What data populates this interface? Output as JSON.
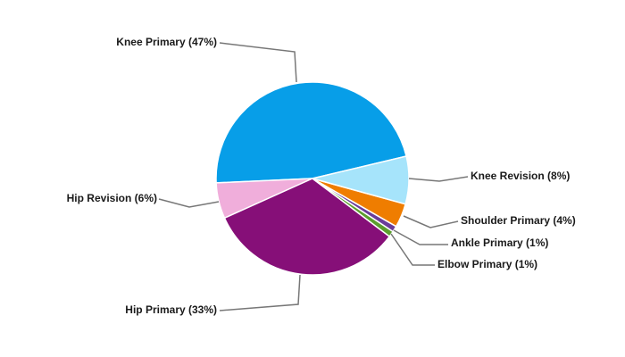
{
  "chart_data": {
    "type": "pie",
    "categories": [
      "Knee Primary (47%)",
      "Hip Revision (6%)",
      "Hip Primary (33%)",
      "Elbow Primary (1%)",
      "Ankle Primary (1%)",
      "Shoulder Primary (4%)",
      "Knee Revision (8%)"
    ],
    "values": [
      47,
      6,
      33,
      1,
      1,
      4,
      8
    ],
    "colors": [
      "#079ee8",
      "#f0aedb",
      "#860f78",
      "#5c9e2e",
      "#6a3d9a",
      "#ef7d00",
      "#a6e4fb"
    ]
  }
}
